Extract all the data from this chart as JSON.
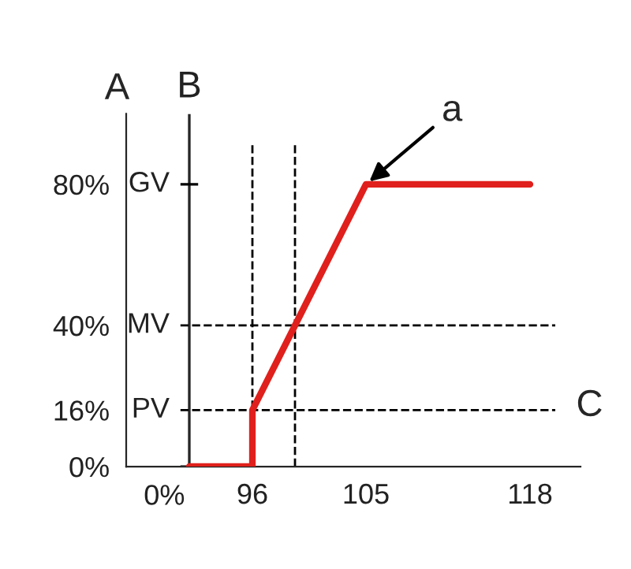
{
  "chart_data": {
    "type": "line",
    "xlabel": "C",
    "ylabel": "A",
    "series": [
      {
        "color": "#e0201c",
        "x": [
          91,
          96,
          96,
          105,
          118
        ],
        "values": [
          0,
          0,
          16,
          80,
          80
        ]
      }
    ],
    "xlim": [
      86,
      122
    ],
    "ylim": [
      0,
      100
    ],
    "xticks": [
      96,
      105,
      118
    ],
    "yticks": [
      {
        "value": 0,
        "label": "0%"
      },
      {
        "value": 16,
        "label": "16%"
      },
      {
        "value": 40,
        "label": "40%"
      },
      {
        "value": 80,
        "label": "80%"
      }
    ],
    "ref_lines": [
      {
        "axis": "x",
        "value": 91,
        "label": "B",
        "line_style": "solid",
        "color": "#262626"
      },
      {
        "axis": "y",
        "value": 0,
        "label": "0%",
        "line_style": "solid",
        "color": "#262626"
      },
      {
        "axis": "y",
        "value": 16,
        "label": "PV",
        "line_style": "dashed",
        "color": "#000000"
      },
      {
        "axis": "y",
        "value": 40,
        "label": "MV",
        "line_style": "dashed",
        "color": "#000000"
      },
      {
        "axis": "y",
        "value": 80,
        "label": "GV",
        "line_style": "solid",
        "color": "#000000"
      },
      {
        "axis": "x",
        "value": 96,
        "label": null,
        "line_style": "dashed",
        "color": "#000000"
      },
      {
        "axis": "x",
        "value": 99.375,
        "label": null,
        "line_style": "dashed",
        "color": "#000000"
      }
    ],
    "annotations": [
      {
        "text": "a",
        "x": 105,
        "y": 80
      }
    ],
    "grid": false,
    "legend": false,
    "marker": "none",
    "line_style": "solid"
  }
}
